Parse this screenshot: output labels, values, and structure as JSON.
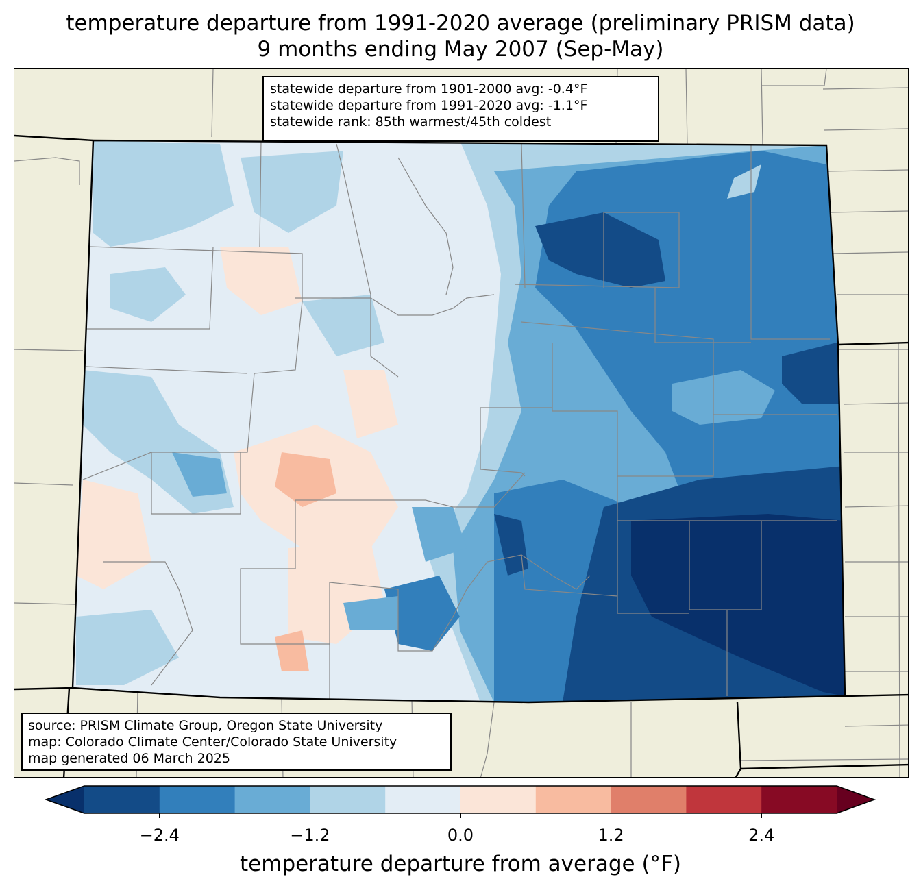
{
  "title": {
    "line1": "temperature departure from 1991-2020 average (preliminary PRISM data)",
    "line2": "9 months ending May 2007 (Sep-May)"
  },
  "stats": {
    "line1": "statewide departure from 1901-2000 avg: -0.4°F",
    "line2": "statewide departure from 1991-2020 avg: -1.1°F",
    "line3": "statewide rank: 85th warmest/45th coldest"
  },
  "source": {
    "line1": "source: PRISM Climate Group, Oregon State University",
    "line2": "map: Colorado Climate Center/Colorado State University",
    "line3": "map generated 06 March 2025"
  },
  "colorbar": {
    "label": "temperature departure from average (°F)",
    "ticks": [
      "−2.4",
      "−1.2",
      "0.0",
      "1.2",
      "2.4"
    ],
    "tick_values": [
      -2.4,
      -1.2,
      0.0,
      1.2,
      2.4
    ],
    "range": [
      -3.0,
      3.0
    ],
    "step": 0.6,
    "colors": [
      "#08306b",
      "#134b87",
      "#327fbb",
      "#69acd5",
      "#b0d4e7",
      "#e3edf5",
      "#fbe5d8",
      "#f8bba0",
      "#e07f6a",
      "#c0363c",
      "#870a24",
      "#67001f"
    ]
  },
  "map_colors": {
    "land": "#efeedc",
    "county_lines": "#888888",
    "state_lines": "#000000"
  }
}
